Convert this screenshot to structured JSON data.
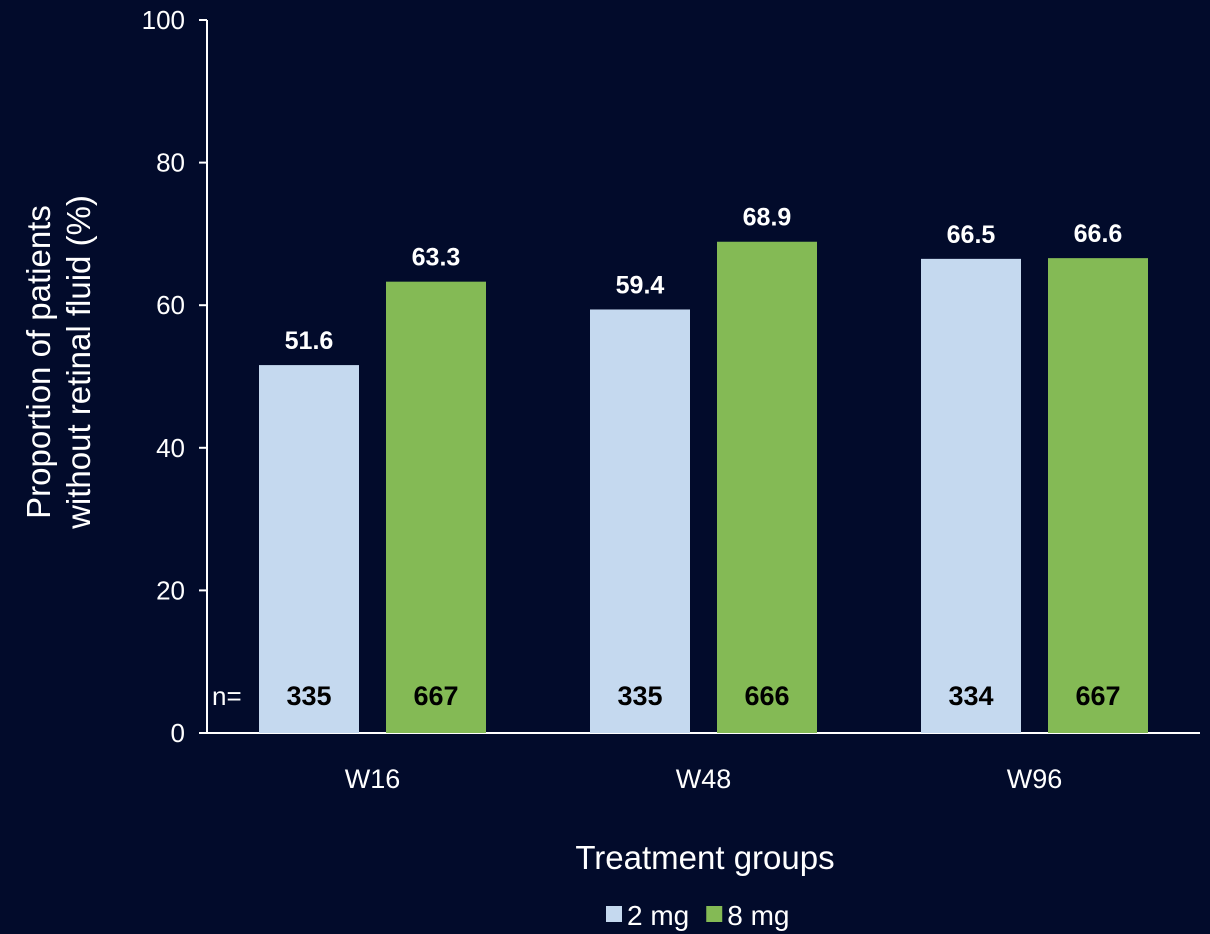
{
  "chart_data": {
    "type": "bar",
    "categories": [
      "W16",
      "W48",
      "W96"
    ],
    "series": [
      {
        "name": "2 mg",
        "color": "#c5d9ef",
        "values": [
          51.6,
          59.4,
          66.5
        ],
        "n": [
          "335",
          "335",
          "334"
        ]
      },
      {
        "name": "8 mg",
        "color": "#84ba55",
        "values": [
          63.3,
          68.9,
          66.6
        ],
        "n": [
          "667",
          "666",
          "667"
        ]
      }
    ],
    "ylabel_line1": "Proportion of patients",
    "ylabel_line2": "without retinal fluid (%)",
    "xlabel": "Treatment groups",
    "n_prefix": "n=",
    "ylim": [
      0,
      100
    ],
    "yticks": [
      0,
      20,
      40,
      60,
      80,
      100
    ],
    "legend_position": "bottom-center",
    "grid": false,
    "background": "#020b2b",
    "axis_color": "#ffffff"
  }
}
